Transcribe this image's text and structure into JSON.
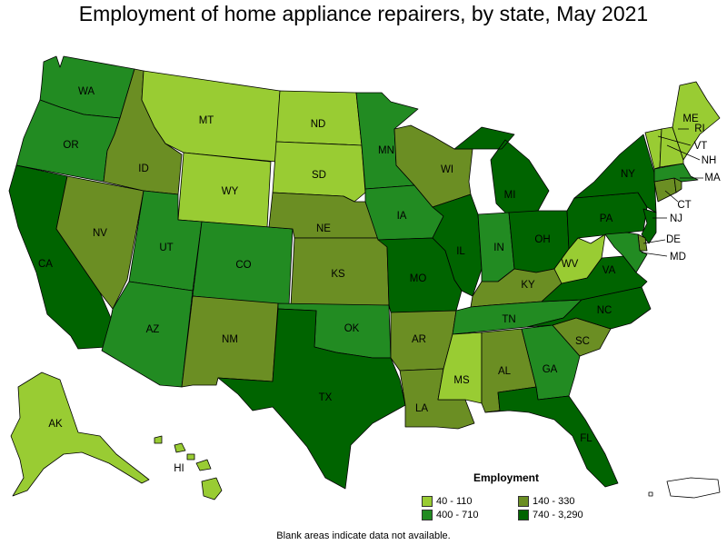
{
  "title": "Employment of home appliance repairers, by state, May 2021",
  "legend": {
    "title": "Employment",
    "items": [
      {
        "label": "40 - 110",
        "color": "#99cc33"
      },
      {
        "label": "140 - 330",
        "color": "#6b8e23"
      },
      {
        "label": "400 - 710",
        "color": "#228b22"
      },
      {
        "label": "740 - 3,290",
        "color": "#006400"
      }
    ]
  },
  "note": "Blank areas indicate data not available.",
  "colors": {
    "c1": "#99cc33",
    "c2": "#6b8e23",
    "c3": "#228b22",
    "c4": "#006400",
    "blank": "#ffffff"
  },
  "states": {
    "WA": "c3",
    "OR": "c3",
    "CA": "c4",
    "NV": "c2",
    "ID": "c2",
    "MT": "c1",
    "WY": "c1",
    "UT": "c3",
    "AZ": "c3",
    "CO": "c3",
    "NM": "c2",
    "ND": "c1",
    "SD": "c1",
    "NE": "c2",
    "KS": "c2",
    "OK": "c3",
    "TX": "c4",
    "MN": "c3",
    "IA": "c3",
    "MO": "c4",
    "AR": "c2",
    "LA": "c2",
    "WI": "c2",
    "IL": "c4",
    "MI": "c4",
    "IN": "c3",
    "OH": "c4",
    "KY": "c2",
    "TN": "c3",
    "MS": "c1",
    "AL": "c2",
    "GA": "c3",
    "FL": "c4",
    "SC": "c2",
    "NC": "c4",
    "VA": "c4",
    "WV": "c1",
    "PA": "c4",
    "NY": "c4",
    "NJ": "c4",
    "DE": "c2",
    "MD": "c3",
    "CT": "c2",
    "MA": "c3",
    "VT": "c1",
    "NH": "c1",
    "ME": "c1",
    "RI": "c2",
    "AK": "c1",
    "HI": "c1",
    "PR": "blank"
  }
}
